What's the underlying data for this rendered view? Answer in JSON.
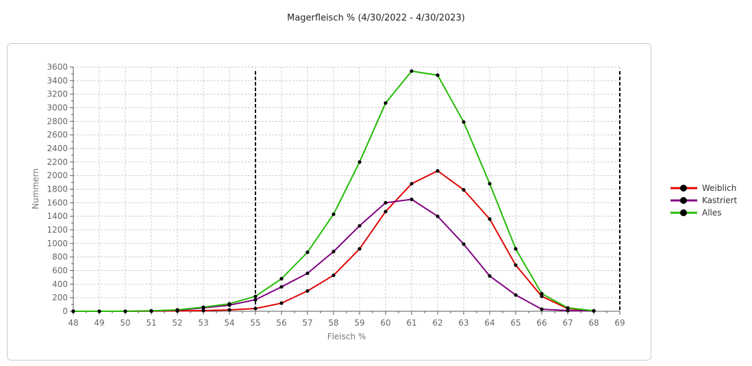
{
  "chart_data": {
    "type": "line",
    "title": "Magerfleisch % (4/30/2022 - 4/30/2023)",
    "xlabel": "Fleisch %",
    "ylabel": "Nummern",
    "xlim": [
      48,
      69
    ],
    "ylim": [
      0,
      3600
    ],
    "x_ticks": [
      48,
      49,
      50,
      51,
      52,
      53,
      54,
      55,
      56,
      57,
      58,
      59,
      60,
      61,
      62,
      63,
      64,
      65,
      66,
      67,
      68,
      69
    ],
    "y_ticks": [
      0,
      200,
      400,
      600,
      800,
      1000,
      1200,
      1400,
      1600,
      1800,
      2000,
      2200,
      2400,
      2600,
      2800,
      3000,
      3200,
      3400,
      3600
    ],
    "grid": true,
    "legend_position": "right",
    "reference_lines_x": [
      55,
      69
    ],
    "series": [
      {
        "name": "Weiblich",
        "color": "#e00000",
        "x": [
          48,
          49,
          50,
          51,
          52,
          53,
          54,
          55,
          56,
          57,
          58,
          59,
          60,
          61,
          62,
          63,
          64,
          65,
          66,
          67,
          68
        ],
        "values": [
          0,
          0,
          0,
          2,
          5,
          10,
          20,
          40,
          120,
          300,
          530,
          920,
          1470,
          1880,
          2070,
          1790,
          1360,
          680,
          220,
          40,
          5
        ]
      },
      {
        "name": "Kastriert",
        "color": "#800080",
        "x": [
          48,
          49,
          50,
          51,
          52,
          53,
          54,
          55,
          56,
          57,
          58,
          59,
          60,
          61,
          62,
          63,
          64,
          65,
          66,
          67,
          68
        ],
        "values": [
          0,
          0,
          0,
          5,
          15,
          50,
          90,
          170,
          360,
          560,
          880,
          1260,
          1600,
          1650,
          1400,
          990,
          520,
          240,
          30,
          10,
          5
        ]
      },
      {
        "name": "Alles",
        "color": "#22bb00",
        "x": [
          48,
          49,
          50,
          51,
          52,
          53,
          54,
          55,
          56,
          57,
          58,
          59,
          60,
          61,
          62,
          63,
          64,
          65,
          66,
          67,
          68
        ],
        "values": [
          0,
          0,
          0,
          7,
          20,
          60,
          110,
          220,
          480,
          870,
          1430,
          2200,
          3070,
          3540,
          3480,
          2790,
          1880,
          920,
          260,
          50,
          8
        ]
      }
    ]
  }
}
